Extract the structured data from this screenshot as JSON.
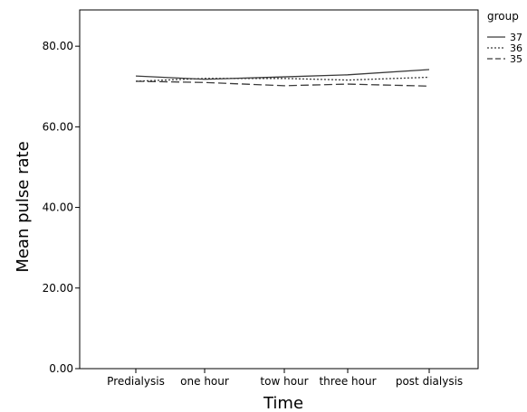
{
  "chart_data": {
    "type": "line",
    "title": "",
    "xlabel": "Time",
    "ylabel": "Mean pulse rate",
    "categories": [
      "Predialysis",
      "one hour",
      "tow hour",
      "three hour",
      "post dialysis"
    ],
    "y_ticks": [
      "0.00",
      "20.00",
      "40.00",
      "60.00",
      "80.00"
    ],
    "y_tick_values": [
      0,
      20,
      40,
      60,
      80
    ],
    "ylim": [
      0,
      89
    ],
    "grid": false,
    "legend": {
      "title": "group",
      "placement": "top-right outside"
    },
    "series": [
      {
        "name": "37",
        "style": "solid",
        "color": "#3a3a3a",
        "values": [
          72.6,
          71.8,
          72.4,
          72.9,
          74.2
        ]
      },
      {
        "name": "36",
        "style": "dotted",
        "color": "#3a3a3a",
        "values": [
          71.3,
          72.0,
          72.0,
          71.6,
          72.3
        ]
      },
      {
        "name": "35",
        "style": "dashed",
        "color": "#3a3a3a",
        "values": [
          71.3,
          71.0,
          70.2,
          70.6,
          70.1
        ]
      }
    ]
  }
}
